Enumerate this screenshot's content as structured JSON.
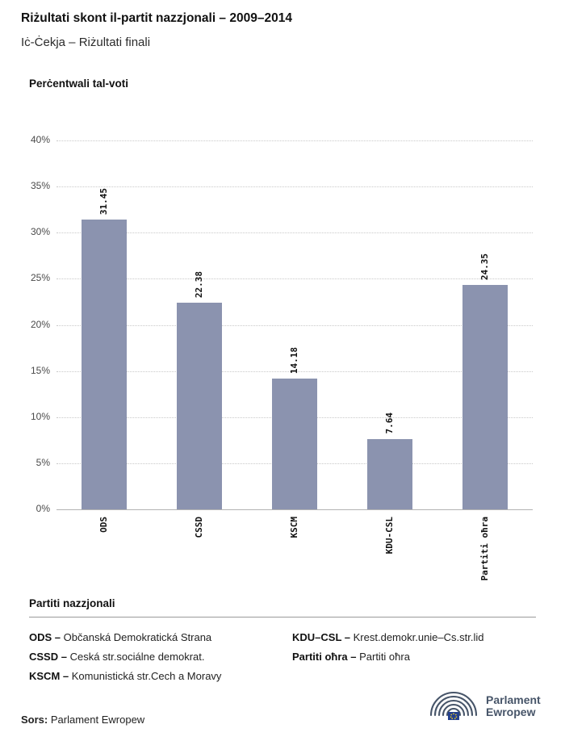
{
  "page": {
    "title": "Riżultati skont il-partit nazzjonali – 2009–2014",
    "subtitle": "Iċ-Ċekja – Riżultati finali"
  },
  "chart_data": {
    "type": "bar",
    "title": "Perċentwali tal-voti",
    "categories": [
      "ODS",
      "CSSD",
      "KSCM",
      "KDU-CSL",
      "Partiti oħra"
    ],
    "values": [
      31.45,
      22.38,
      14.18,
      7.64,
      24.35
    ],
    "xlabel": "",
    "ylabel": "Perċentwali tal-voti",
    "ylim": [
      0,
      40
    ],
    "y_ticks": [
      0,
      5,
      10,
      15,
      20,
      25,
      30,
      35,
      40
    ],
    "tick_suffix": "%",
    "grid": "dotted-horizontal",
    "legend_position": "none",
    "bar_color": "#8b93af"
  },
  "legend_panel": {
    "heading": "Partiti nazzjonali",
    "columns": [
      [
        {
          "term": "ODS –",
          "desc": "Občanská Demokratická Strana"
        },
        {
          "term": "CSSD –",
          "desc": "Ceská str.sociálne demokrat."
        },
        {
          "term": "KSCM –",
          "desc": "Komunistická str.Cech a Moravy"
        }
      ],
      [
        {
          "term": "KDU–CSL –",
          "desc": "Krest.demokr.unie–Cs.str.lid"
        },
        {
          "term": "Partiti oħra –",
          "desc": "Partiti oħra"
        }
      ]
    ]
  },
  "footer": {
    "source_label": "Sors:",
    "source_text": "Parlament Ewropew"
  },
  "logo": {
    "line1": "Parlament",
    "line2": "Ewropew",
    "color": "#475569",
    "flag_blue": "#24408e",
    "star_yellow": "#ffd617"
  }
}
